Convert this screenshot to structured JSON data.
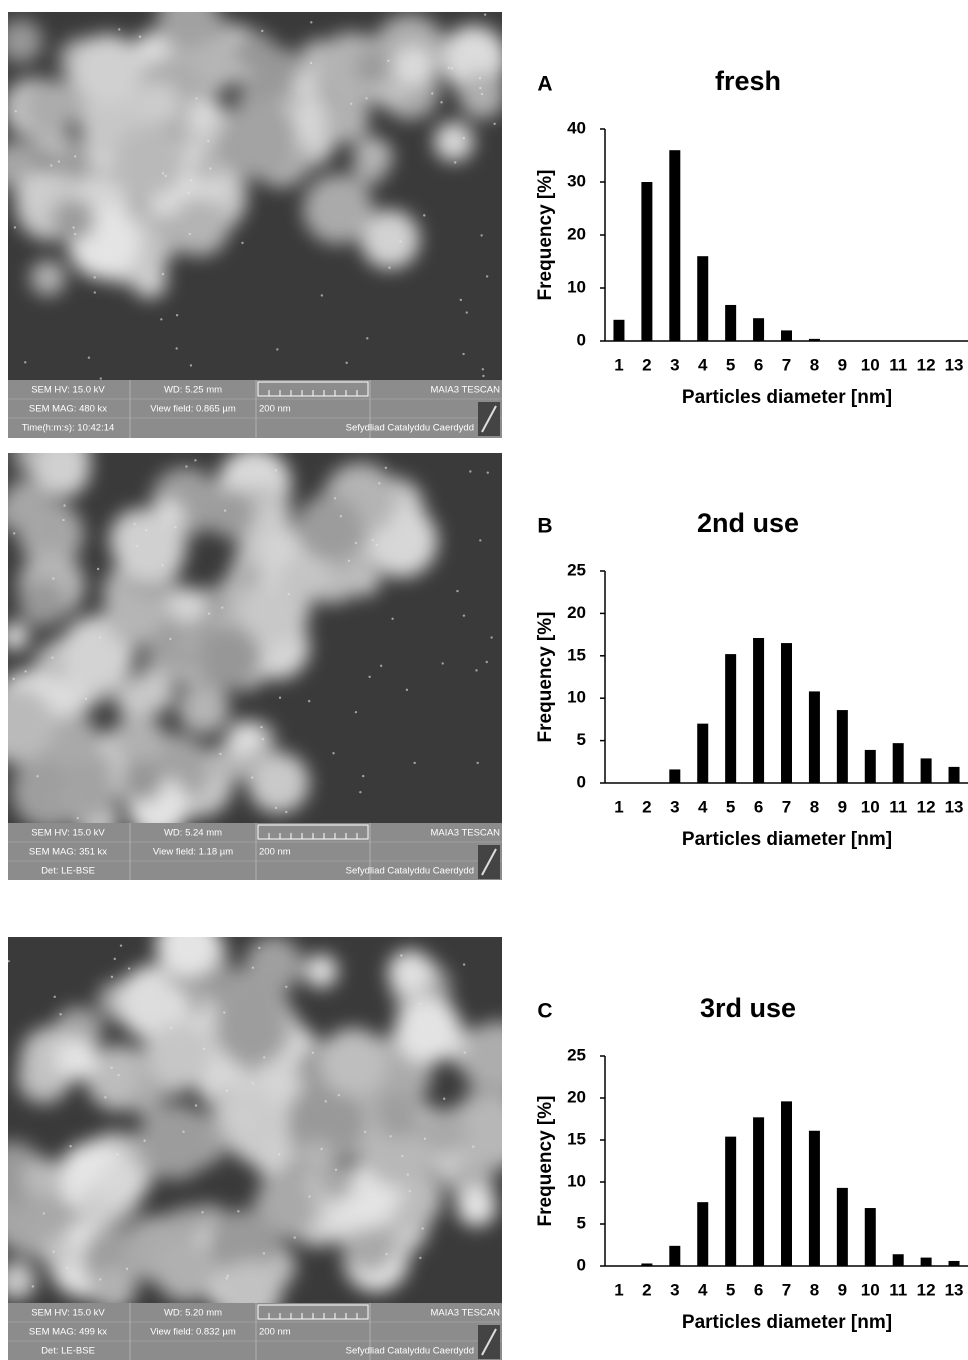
{
  "chart_data": [
    {
      "type": "bar",
      "panel": "A",
      "title": "fresh",
      "x_label": "Particles diameter [nm]",
      "y_label": "Frequency [%]",
      "categories": [
        "1",
        "2",
        "3",
        "4",
        "5",
        "6",
        "7",
        "8",
        "9",
        "10",
        "11",
        "12",
        "13"
      ],
      "values": [
        4,
        30,
        36,
        16,
        6.8,
        4.3,
        2,
        0.4,
        0,
        0,
        0,
        0,
        0
      ],
      "color": "#000000",
      "ylim": [
        0,
        40
      ],
      "yticks": [
        0,
        10,
        20,
        30,
        40
      ],
      "grid": false
    },
    {
      "type": "bar",
      "panel": "B",
      "title": "2nd use",
      "x_label": "Particles diameter [nm]",
      "y_label": "Frequency [%]",
      "categories": [
        "1",
        "2",
        "3",
        "4",
        "5",
        "6",
        "7",
        "8",
        "9",
        "10",
        "11",
        "12",
        "13"
      ],
      "values": [
        0,
        0,
        1.6,
        7,
        15.2,
        17.1,
        16.5,
        10.8,
        8.6,
        3.9,
        4.7,
        2.9,
        1.9
      ],
      "color": "#000000",
      "ylim": [
        0,
        25
      ],
      "yticks": [
        0,
        5,
        10,
        15,
        20,
        25
      ],
      "grid": false
    },
    {
      "type": "bar",
      "panel": "C",
      "title": "3rd use",
      "x_label": "Particles diameter [nm]",
      "y_label": "Frequency [%]",
      "categories": [
        "1",
        "2",
        "3",
        "4",
        "5",
        "6",
        "7",
        "8",
        "9",
        "10",
        "11",
        "12",
        "13"
      ],
      "values": [
        0,
        0.3,
        2.4,
        7.6,
        15.4,
        17.7,
        19.6,
        16.1,
        9.3,
        6.9,
        1.4,
        1,
        0.6
      ],
      "color": "#000000",
      "ylim": [
        0,
        25
      ],
      "yticks": [
        0,
        5,
        10,
        15,
        20,
        25
      ],
      "grid": false
    }
  ],
  "sem_panels": [
    {
      "hv": "SEM HV: 15.0 kV",
      "wd": "WD: 5.25 mm",
      "brand": "MAIA3 TESCAN",
      "mag": "SEM MAG: 480 kx",
      "view_field": "View field: 0.865 µm",
      "scale": "200 nm",
      "det": "Time(h:m:s): 10:42:14",
      "lab": "Sefydliad Catalyddu Caerdydd"
    },
    {
      "hv": "SEM HV: 15.0 kV",
      "wd": "WD: 5.24 mm",
      "brand": "MAIA3 TESCAN",
      "mag": "SEM MAG: 351 kx",
      "view_field": "View field: 1.18 µm",
      "scale": "200 nm",
      "det": "Det: LE-BSE",
      "lab": "Sefydliad Catalyddu Caerdydd"
    },
    {
      "hv": "SEM HV: 15.0 kV",
      "wd": "WD: 5.20 mm",
      "brand": "MAIA3 TESCAN",
      "mag": "SEM MAG: 499 kx",
      "view_field": "View field: 0.832 µm",
      "scale": "200 nm",
      "det": "Det: LE-BSE",
      "lab": "Sefydliad Catalyddu Caerdydd"
    }
  ]
}
